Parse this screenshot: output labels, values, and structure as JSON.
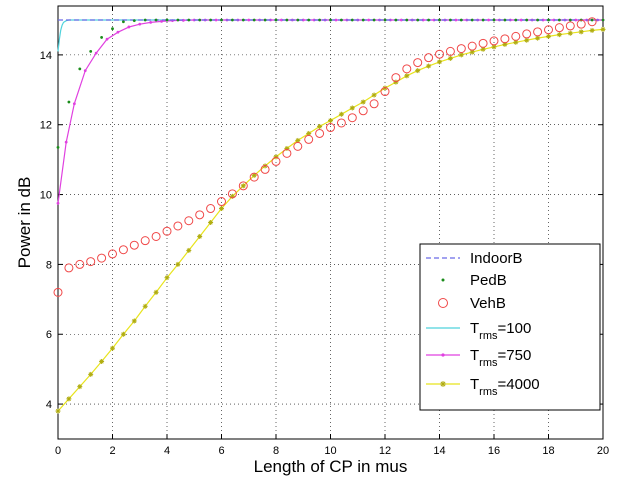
{
  "chart_data": {
    "type": "line",
    "xlabel": "Length of CP in mus",
    "ylabel": "Power in dB",
    "xlim": [
      0,
      20
    ],
    "ylim": [
      3,
      15.4
    ],
    "xticks": [
      "0",
      "2",
      "4",
      "6",
      "8",
      "10",
      "12",
      "14",
      "16",
      "18",
      "20"
    ],
    "yticks": [
      "4",
      "6",
      "8",
      "10",
      "12",
      "14"
    ],
    "grid": true,
    "legend_position": "bottom-right",
    "series": [
      {
        "name": "IndoorB",
        "style": "dashed",
        "color": "#6a6ae6",
        "x": [
          0,
          0.1,
          0.2,
          0.4,
          0.6,
          1,
          20
        ],
        "y": [
          15.0,
          15.0,
          15.0,
          15.0,
          15.0,
          15.0,
          15.0
        ]
      },
      {
        "name": "PedB",
        "style": "dots",
        "color": "#1a8c1a",
        "x": [
          0,
          0.4,
          0.8,
          1.2,
          1.6,
          2.0,
          2.4,
          2.8,
          3.2,
          3.6,
          4.0,
          4.4,
          4.8,
          5.2,
          5.6,
          6.0,
          6.4,
          6.8,
          7.2,
          7.6,
          8.0,
          8.4,
          8.8,
          9.2,
          9.6,
          10.0,
          10.4,
          10.8,
          11.2,
          11.6,
          12.0,
          12.4,
          12.8,
          13.2,
          13.6,
          14.0,
          14.4,
          14.8,
          15.2,
          15.6,
          16.0,
          16.4,
          16.8,
          17.2,
          17.6,
          18.0,
          18.4,
          18.8,
          19.2,
          19.6,
          20.0
        ],
        "y": [
          11.35,
          12.65,
          13.6,
          14.1,
          14.5,
          14.75,
          14.95,
          14.98,
          15.0,
          15.0,
          15.0,
          15.0,
          15.0,
          15.0,
          15.0,
          15.0,
          15.0,
          15.0,
          15.0,
          15.0,
          15.0,
          15.0,
          15.0,
          15.0,
          15.0,
          15.0,
          15.0,
          15.0,
          15.0,
          15.0,
          15.0,
          15.0,
          15.0,
          15.0,
          15.0,
          15.0,
          15.0,
          15.0,
          15.0,
          15.0,
          15.0,
          15.0,
          15.0,
          15.0,
          15.0,
          15.0,
          15.0,
          15.0,
          15.0,
          15.0,
          15.0
        ]
      },
      {
        "name": "VehB",
        "style": "circles",
        "color": "#f04848",
        "x": [
          0,
          0.4,
          0.8,
          1.2,
          1.6,
          2.0,
          2.4,
          2.8,
          3.2,
          3.6,
          4.0,
          4.4,
          4.8,
          5.2,
          5.6,
          6.0,
          6.4,
          6.8,
          7.2,
          7.6,
          8.0,
          8.4,
          8.8,
          9.2,
          9.6,
          10.0,
          10.4,
          10.8,
          11.2,
          11.6,
          12.0,
          12.4,
          12.8,
          13.2,
          13.6,
          14.0,
          14.4,
          14.8,
          15.2,
          15.6,
          16.0,
          16.4,
          16.8,
          17.2,
          17.6,
          18.0,
          18.4,
          18.8,
          19.2,
          19.6
        ],
        "y": [
          7.2,
          7.9,
          8.0,
          8.08,
          8.18,
          8.3,
          8.42,
          8.55,
          8.68,
          8.8,
          8.95,
          9.1,
          9.25,
          9.42,
          9.6,
          9.8,
          10.02,
          10.25,
          10.5,
          10.72,
          10.95,
          11.18,
          11.38,
          11.58,
          11.75,
          11.92,
          12.05,
          12.2,
          12.4,
          12.6,
          12.95,
          13.35,
          13.6,
          13.78,
          13.92,
          14.02,
          14.1,
          14.18,
          14.25,
          14.33,
          14.4,
          14.46,
          14.53,
          14.6,
          14.66,
          14.72,
          14.78,
          14.83,
          14.88,
          14.95
        ]
      },
      {
        "name": "T_rms=100",
        "label_main": "T",
        "label_sub": "rms",
        "label_value": "=100",
        "style": "line",
        "color": "#4fd2dc",
        "x": [
          0,
          0.05,
          0.1,
          0.15,
          0.2,
          0.3,
          0.4,
          0.6,
          1.0,
          20
        ],
        "y": [
          14.1,
          14.45,
          14.7,
          14.85,
          14.93,
          14.98,
          15.0,
          15.0,
          15.0,
          15.0
        ]
      },
      {
        "name": "T_rms=750",
        "label_main": "T",
        "label_sub": "rms",
        "label_value": "=750",
        "style": "line-dots",
        "color": "#e040e0",
        "x": [
          0,
          0.3,
          0.6,
          1.0,
          1.4,
          1.8,
          2.2,
          2.6,
          3.0,
          3.4,
          3.8,
          4.2,
          4.6,
          5.0,
          5.4,
          5.8,
          6.2,
          6.6,
          7.0,
          7.4,
          7.8,
          8.2,
          8.6,
          9.0,
          9.4,
          9.8,
          10.2,
          10.6,
          11.0,
          11.4,
          11.8,
          12.2,
          12.6,
          13.0,
          13.4,
          13.8,
          14.2,
          14.6,
          15.0,
          15.4,
          15.8,
          16.2,
          16.6,
          17.0,
          17.4,
          17.8,
          18.2,
          18.6,
          19.0,
          19.4,
          19.8,
          20.0
        ],
        "y": [
          9.75,
          11.5,
          12.6,
          13.55,
          14.05,
          14.45,
          14.65,
          14.8,
          14.88,
          14.93,
          14.96,
          14.98,
          14.99,
          15.0,
          15.0,
          15.0,
          15.0,
          15.0,
          15.0,
          15.0,
          15.0,
          15.0,
          15.0,
          15.0,
          15.0,
          15.0,
          15.0,
          15.0,
          15.0,
          15.0,
          15.0,
          15.0,
          15.0,
          15.0,
          15.0,
          15.0,
          15.0,
          15.0,
          15.0,
          15.0,
          15.0,
          15.0,
          15.0,
          15.0,
          15.0,
          15.0,
          15.0,
          15.0,
          15.0,
          15.0,
          15.0,
          15.0
        ]
      },
      {
        "name": "T_rms=4000",
        "label_main": "T",
        "label_sub": "rms",
        "label_value": "=4000",
        "style": "line-stars",
        "color": "#e8e41c",
        "x": [
          0,
          0.4,
          0.8,
          1.2,
          1.6,
          2.0,
          2.4,
          2.8,
          3.2,
          3.6,
          4.0,
          4.4,
          4.8,
          5.2,
          5.6,
          6.0,
          6.4,
          6.8,
          7.2,
          7.6,
          8.0,
          8.4,
          8.8,
          9.2,
          9.6,
          10.0,
          10.4,
          10.8,
          11.2,
          11.6,
          12.0,
          12.4,
          12.8,
          13.2,
          13.6,
          14.0,
          14.4,
          14.8,
          15.2,
          15.6,
          16.0,
          16.4,
          16.8,
          17.2,
          17.6,
          18.0,
          18.4,
          18.8,
          19.2,
          19.6,
          20.0
        ],
        "y": [
          3.8,
          4.15,
          4.5,
          4.85,
          5.22,
          5.6,
          6.0,
          6.38,
          6.8,
          7.2,
          7.62,
          8.0,
          8.4,
          8.8,
          9.2,
          9.6,
          9.95,
          10.25,
          10.55,
          10.82,
          11.08,
          11.32,
          11.55,
          11.75,
          11.95,
          12.12,
          12.3,
          12.48,
          12.65,
          12.85,
          13.05,
          13.22,
          13.4,
          13.55,
          13.68,
          13.8,
          13.9,
          14.0,
          14.08,
          14.16,
          14.23,
          14.3,
          14.36,
          14.42,
          14.48,
          14.53,
          14.58,
          14.62,
          14.66,
          14.7,
          14.73
        ]
      }
    ]
  }
}
